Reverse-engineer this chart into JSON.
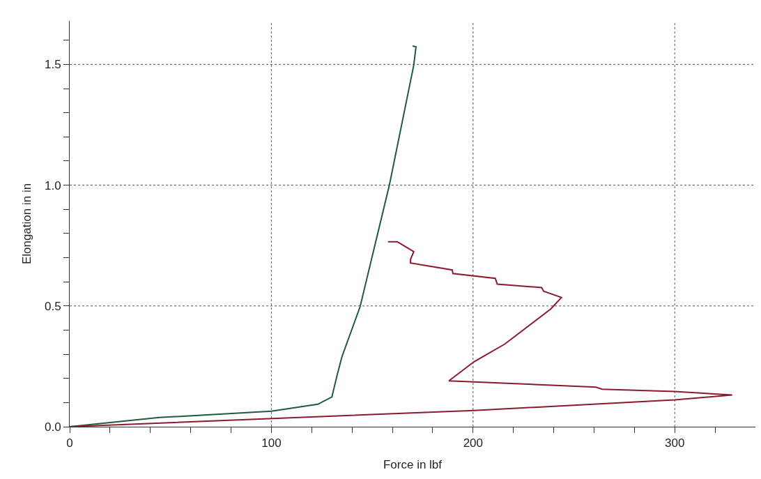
{
  "chart_data": {
    "type": "line",
    "xlabel": "Force in lbf",
    "ylabel": "Elongation in in",
    "xlim": [
      0,
      340
    ],
    "ylim": [
      0,
      1.68
    ],
    "xticks": [
      0,
      {
        "value": 20,
        "label": null
      },
      {
        "value": 40,
        "label": null
      },
      {
        "value": 60,
        "label": null
      },
      {
        "value": 80,
        "label": null
      },
      100,
      {
        "value": 120,
        "label": null
      },
      {
        "value": 140,
        "label": null
      },
      {
        "value": 160,
        "label": null
      },
      {
        "value": 180,
        "label": null
      },
      200,
      {
        "value": 220,
        "label": null
      },
      {
        "value": 240,
        "label": null
      },
      {
        "value": 260,
        "label": null
      },
      {
        "value": 280,
        "label": null
      },
      300,
      {
        "value": 320,
        "label": null
      }
    ],
    "yticks": [
      {
        "value": 0,
        "label": "0.0"
      },
      {
        "value": 0.1,
        "label": null
      },
      {
        "value": 0.2,
        "label": null
      },
      {
        "value": 0.3,
        "label": null
      },
      {
        "value": 0.4,
        "label": null
      },
      0.5,
      {
        "value": 0.6,
        "label": null
      },
      {
        "value": 0.7,
        "label": null
      },
      {
        "value": 0.8,
        "label": null
      },
      {
        "value": 0.9,
        "label": null
      },
      {
        "value": 1,
        "label": "1.0"
      },
      {
        "value": 1.1,
        "label": null
      },
      {
        "value": 1.2,
        "label": null
      },
      {
        "value": 1.3,
        "label": null
      },
      {
        "value": 1.4,
        "label": null
      },
      1.5,
      {
        "value": 1.6,
        "label": null
      }
    ],
    "grid": true,
    "line_style": "solid",
    "series": [
      {
        "color": "#1f5a3c",
        "x": [
          0,
          44.4,
          100,
          123,
          130,
          132.5,
          135,
          144,
          158.5,
          170.6,
          171.7,
          170
        ],
        "values": [
          0,
          0.038,
          0.064,
          0.093,
          0.123,
          0.21,
          0.29,
          0.497,
          1.0,
          1.497,
          1.573,
          1.576
        ]
      },
      {
        "color": "#8b1a2e",
        "x": [
          0,
          171.7,
          200.5,
          300,
          328.5,
          300,
          264,
          261,
          188,
          200.5,
          215.7,
          238.6,
          243.8,
          235,
          234,
          212,
          211,
          190,
          189.7,
          169,
          169,
          170.6,
          165.4,
          162.4,
          157.8
        ],
        "values": [
          0,
          0.058,
          0.067,
          0.111,
          0.131,
          0.146,
          0.155,
          0.164,
          0.19,
          0.269,
          0.342,
          0.488,
          0.535,
          0.561,
          0.576,
          0.59,
          0.614,
          0.634,
          0.649,
          0.678,
          0.693,
          0.725,
          0.751,
          0.766,
          0.766
        ]
      }
    ]
  }
}
